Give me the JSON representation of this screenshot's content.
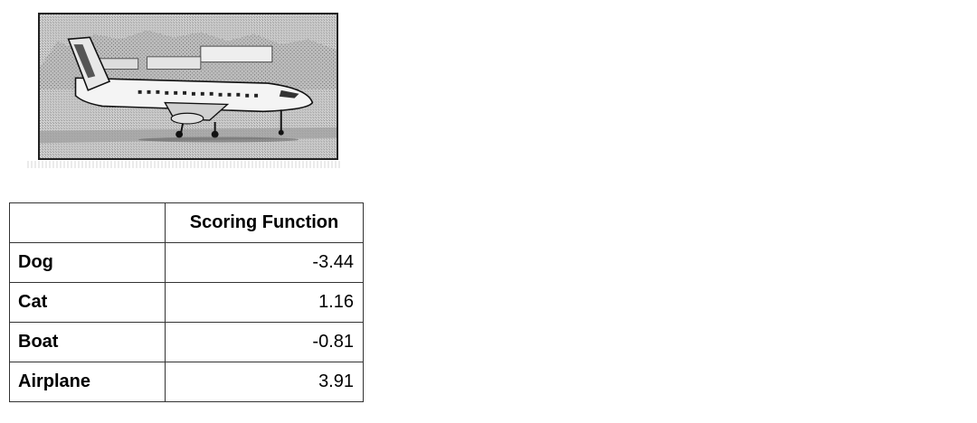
{
  "image": {
    "subject": "airplane-icon"
  },
  "table": {
    "header": "Scoring Function",
    "rows": [
      {
        "label": "Dog",
        "value": "-3.44"
      },
      {
        "label": "Cat",
        "value": "1.16"
      },
      {
        "label": "Boat",
        "value": "-0.81"
      },
      {
        "label": "Airplane",
        "value": "3.91"
      }
    ]
  }
}
